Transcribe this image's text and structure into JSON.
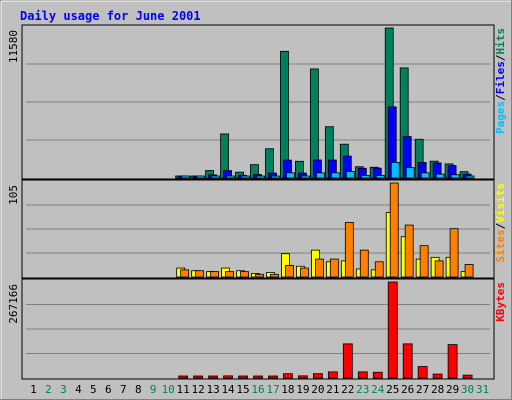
{
  "title": "Daily usage for June 2001",
  "colors": {
    "background": "#c0c0c0",
    "title": "#0000ff",
    "hits": "#00805c",
    "files": "#0000ff",
    "pages": "#00c0ff",
    "visits": "#ffff00",
    "sites": "#ff8000",
    "kbytes": "#ff0000",
    "weekend_label": "#00805c",
    "weekday_label": "#000000"
  },
  "chart_data": [
    {
      "type": "bar",
      "panel": "hits-files-pages",
      "max_label": "11580",
      "legend": [
        "Pages",
        "/",
        "Files",
        "/",
        "Hits"
      ],
      "legend_placement": "right-vertical",
      "categories": [
        "1",
        "2",
        "3",
        "4",
        "5",
        "6",
        "7",
        "8",
        "9",
        "10",
        "11",
        "12",
        "13",
        "14",
        "15",
        "16",
        "17",
        "18",
        "19",
        "20",
        "21",
        "22",
        "23",
        "24",
        "25",
        "26",
        "27",
        "28",
        "29",
        "30",
        "31"
      ],
      "ylim": [
        0,
        11580
      ],
      "series": [
        {
          "name": "Hits",
          "values": [
            0,
            0,
            0,
            0,
            0,
            0,
            0,
            0,
            0,
            0,
            145,
            70,
            580,
            3400,
            450,
            1030,
            2260,
            9780,
            1290,
            8420,
            3960,
            2610,
            870,
            830,
            11580,
            8500,
            2990,
            1300,
            1090,
            490,
            0
          ]
        },
        {
          "name": "Files",
          "values": [
            0,
            0,
            0,
            0,
            0,
            0,
            0,
            0,
            0,
            0,
            75,
            35,
            240,
            570,
            210,
            270,
            380,
            1380,
            380,
            1390,
            1390,
            1690,
            750,
            760,
            5490,
            3200,
            1200,
            1160,
            960,
            300,
            0
          ]
        },
        {
          "name": "Pages",
          "values": [
            0,
            0,
            0,
            0,
            0,
            0,
            0,
            0,
            0,
            0,
            30,
            15,
            80,
            150,
            60,
            80,
            100,
            400,
            100,
            400,
            400,
            500,
            200,
            200,
            1200,
            800,
            400,
            300,
            250,
            80,
            0
          ]
        }
      ]
    },
    {
      "type": "bar",
      "panel": "visits-sites",
      "max_label": "105",
      "legend": [
        "Sites",
        "/",
        "Visits"
      ],
      "legend_placement": "right-vertical",
      "categories": [
        "1",
        "2",
        "3",
        "4",
        "5",
        "6",
        "7",
        "8",
        "9",
        "10",
        "11",
        "12",
        "13",
        "14",
        "15",
        "16",
        "17",
        "18",
        "19",
        "20",
        "21",
        "22",
        "23",
        "24",
        "25",
        "26",
        "27",
        "28",
        "29",
        "30",
        "31"
      ],
      "ylim": [
        0,
        105
      ],
      "series": [
        {
          "name": "Visits",
          "values": [
            0,
            0,
            0,
            0,
            0,
            0,
            0,
            0,
            0,
            0,
            10,
            7,
            6,
            10,
            7,
            4,
            5,
            26,
            12,
            30,
            17,
            18,
            9,
            8,
            72,
            45,
            20,
            22,
            22,
            6,
            0
          ]
        },
        {
          "name": "Sites",
          "values": [
            0,
            0,
            0,
            0,
            0,
            0,
            0,
            0,
            0,
            0,
            8,
            7,
            6,
            6,
            6,
            3,
            3,
            13,
            10,
            20,
            20,
            61,
            30,
            17,
            105,
            58,
            35,
            18,
            54,
            14,
            0
          ]
        }
      ]
    },
    {
      "type": "bar",
      "panel": "kbytes",
      "max_label": "267166",
      "legend": [
        "KBytes"
      ],
      "legend_placement": "right-vertical",
      "categories": [
        "1",
        "2",
        "3",
        "4",
        "5",
        "6",
        "7",
        "8",
        "9",
        "10",
        "11",
        "12",
        "13",
        "14",
        "15",
        "16",
        "17",
        "18",
        "19",
        "20",
        "21",
        "22",
        "23",
        "24",
        "25",
        "26",
        "27",
        "28",
        "29",
        "30",
        "31"
      ],
      "ylim": [
        0,
        267166
      ],
      "series": [
        {
          "name": "KBytes",
          "values": [
            0,
            0,
            0,
            0,
            0,
            0,
            0,
            0,
            0,
            0,
            2000,
            2000,
            2000,
            6000,
            4000,
            2000,
            5000,
            12000,
            6000,
            12000,
            17000,
            95000,
            17000,
            16000,
            267166,
            95000,
            32000,
            11000,
            93000,
            8000,
            0
          ]
        }
      ]
    }
  ],
  "x_labels": [
    "1",
    "2",
    "3",
    "4",
    "5",
    "6",
    "7",
    "8",
    "9",
    "10",
    "11",
    "12",
    "13",
    "14",
    "15",
    "16",
    "17",
    "18",
    "19",
    "20",
    "21",
    "22",
    "23",
    "24",
    "25",
    "26",
    "27",
    "28",
    "29",
    "30",
    "31"
  ],
  "weekend_days": [
    "2",
    "3",
    "9",
    "10",
    "16",
    "17",
    "23",
    "24",
    "30",
    "31"
  ]
}
